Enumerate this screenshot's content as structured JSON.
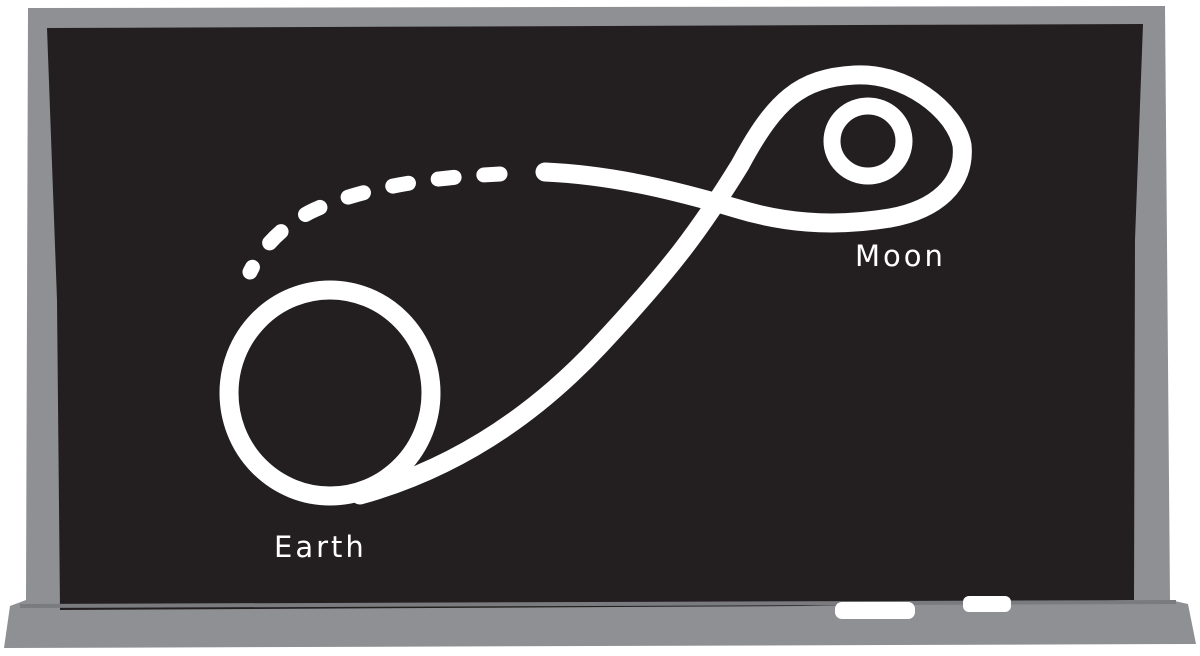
{
  "diagram": {
    "labels": {
      "earth": "Earth",
      "moon": "Moon"
    },
    "colors": {
      "frame": "#8f9093",
      "board": "#231f20",
      "chalk": "#ffffff"
    }
  }
}
